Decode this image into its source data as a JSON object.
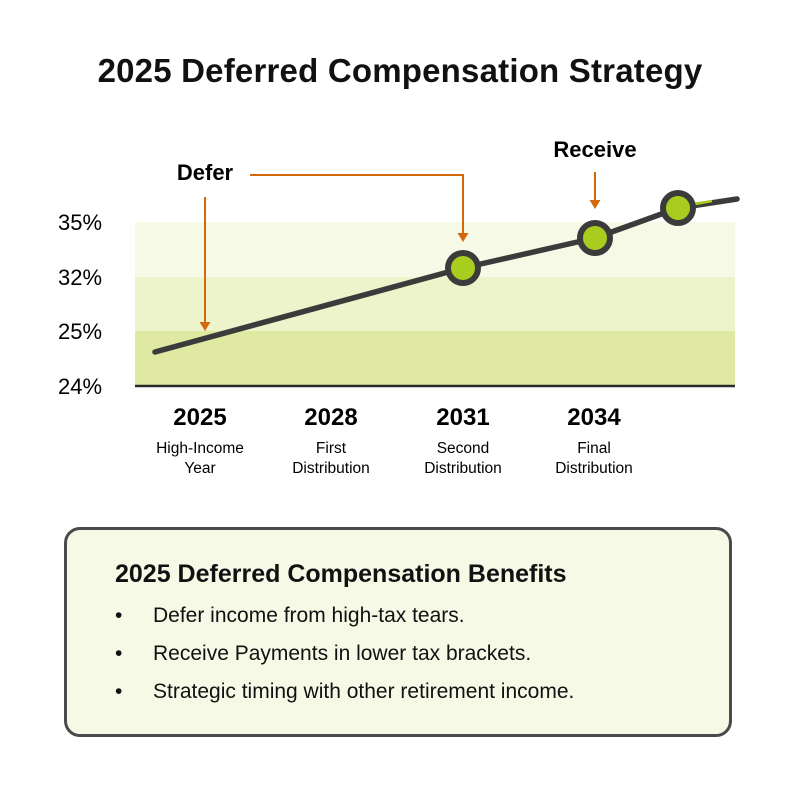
{
  "title": "2025 Deferred Compensation Strategy",
  "chart_data": {
    "type": "line",
    "y_tick_labels": [
      "35%",
      "32%",
      "25%",
      "24%"
    ],
    "x_ticks": [
      {
        "year": "2025",
        "lines": [
          "High-Income",
          "Year"
        ]
      },
      {
        "year": "2028",
        "lines": [
          "First",
          "Distribution"
        ]
      },
      {
        "year": "2031",
        "lines": [
          "Second",
          "Distribution"
        ]
      },
      {
        "year": "2034",
        "lines": [
          "Final",
          "Distribution"
        ]
      }
    ],
    "bands": [
      {
        "from": "24%",
        "to": "25%",
        "color": "#dfe9a1"
      },
      {
        "from": "25%",
        "to": "32%",
        "color": "#edf3cb"
      },
      {
        "from": "32%",
        "to": "35%",
        "color": "#f6f9e6"
      }
    ],
    "line_color": "#3b3b3b",
    "marker_fill": "#a8cd1e",
    "arrow_color": "#d4690c",
    "annotations": [
      {
        "label": "Defer",
        "target": "2025"
      },
      {
        "label": "Receive",
        "target": "2034"
      }
    ]
  },
  "benefits_panel": {
    "title": "2025 Deferred Compensation Benefits",
    "bullet": "•",
    "items": [
      "Defer income from high-tax tears.",
      "Receive Payments in lower tax brackets.",
      "Strategic timing with other retirement income."
    ]
  }
}
